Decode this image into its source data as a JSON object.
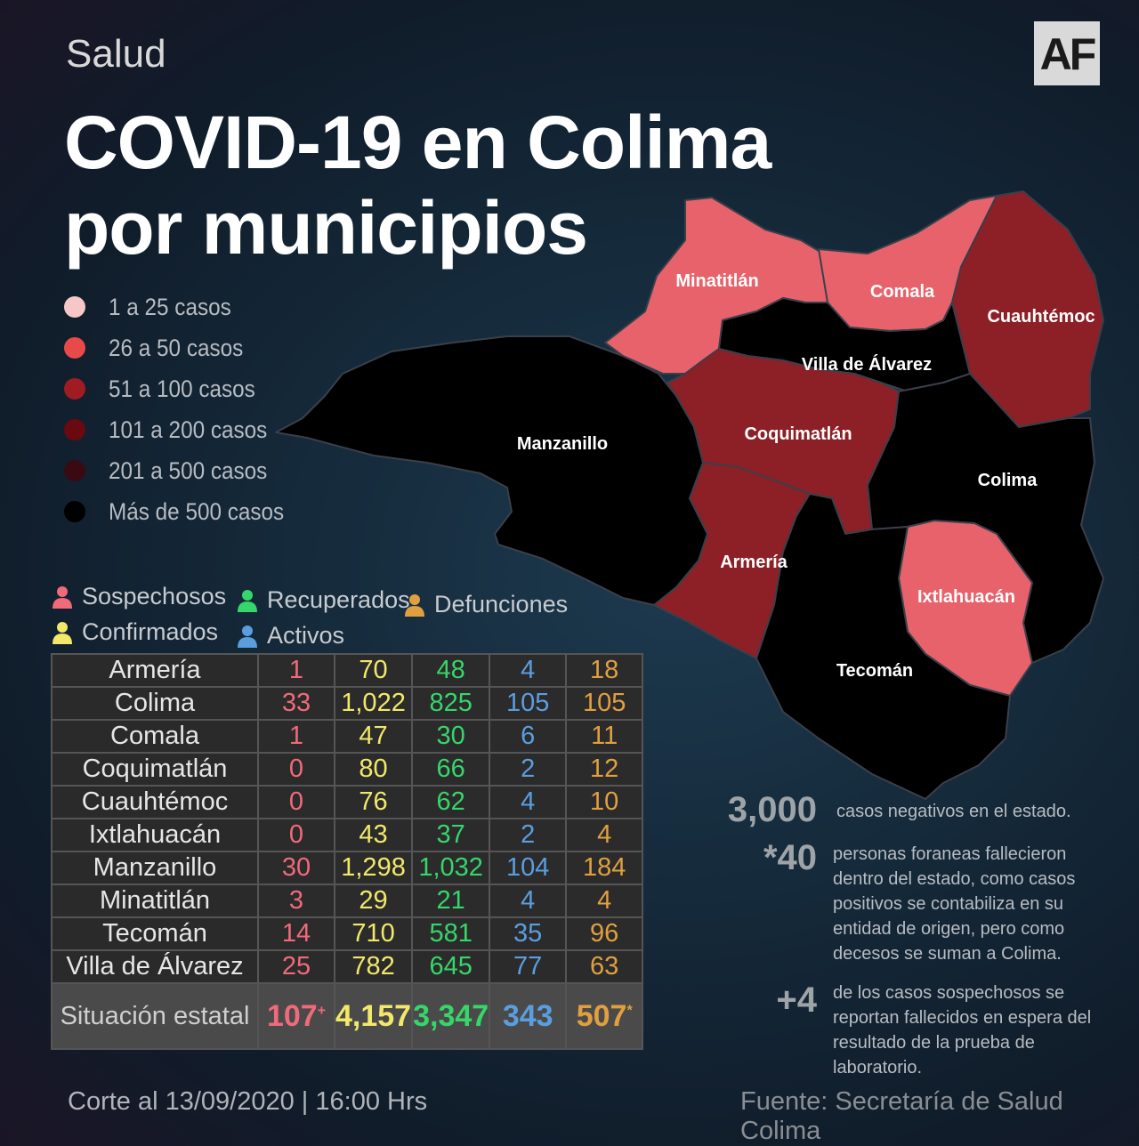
{
  "header": {
    "section": "Salud",
    "title_line1": "COVID-19 en Colima",
    "title_line2": "por municipios",
    "logo": "AF"
  },
  "legend": [
    {
      "label": "1 a 25 casos",
      "color": "#f7c7c7"
    },
    {
      "label": "26 a  50 casos",
      "color": "#e84a4a"
    },
    {
      "label": "51 a  100 casos",
      "color": "#a01c22"
    },
    {
      "label": "101 a  200 casos",
      "color": "#6a0a10"
    },
    {
      "label": "201  a  500 casos",
      "color": "#3a0a12"
    },
    {
      "label": "Más de 500 casos",
      "color": "#000000"
    }
  ],
  "map": {
    "colors": {
      "light": "#e7626a",
      "dark": "#8c2026",
      "black": "#000000",
      "border": "#3a3f4a"
    },
    "labels": {
      "minatitlan": "Minatitlán",
      "comala": "Comala",
      "cuauhtemoc": "Cuauhtémoc",
      "villa": "Villa de Álvarez",
      "manzanillo": "Manzanillo",
      "coquimatlan": "Coquimatlán",
      "colima": "Colima",
      "armeria": "Armería",
      "ixtlahuacan": "Ixtlahuacán",
      "tecoman": "Tecomán"
    }
  },
  "keys": {
    "sospechosos": {
      "label": "Sospechosos",
      "color": "#f06a7a"
    },
    "confirmados": {
      "label": "Confirmados",
      "color": "#f2e86a"
    },
    "recuperados": {
      "label": "Recuperados",
      "color": "#36d66a"
    },
    "activos": {
      "label": "Activos",
      "color": "#5b9ee0"
    },
    "defunciones": {
      "label": "Defunciones",
      "color": "#e0a040"
    }
  },
  "table": {
    "rows": [
      {
        "name": "Armería",
        "sus": "1",
        "con": "70",
        "rec": "48",
        "act": "4",
        "def": "18"
      },
      {
        "name": "Colima",
        "sus": "33",
        "con": "1,022",
        "rec": "825",
        "act": "105",
        "def": "105"
      },
      {
        "name": "Comala",
        "sus": "1",
        "con": "47",
        "rec": "30",
        "act": "6",
        "def": "11"
      },
      {
        "name": "Coquimatlán",
        "sus": "0",
        "con": "80",
        "rec": "66",
        "act": "2",
        "def": "12"
      },
      {
        "name": "Cuauhtémoc",
        "sus": "0",
        "con": "76",
        "rec": "62",
        "act": "4",
        "def": "10"
      },
      {
        "name": "Ixtlahuacán",
        "sus": "0",
        "con": "43",
        "rec": "37",
        "act": "2",
        "def": "4"
      },
      {
        "name": "Manzanillo",
        "sus": "30",
        "con": "1,298",
        "rec": "1,032",
        "act": "104",
        "def": "184"
      },
      {
        "name": "Minatitlán",
        "sus": "3",
        "con": "29",
        "rec": "21",
        "act": "4",
        "def": "4"
      },
      {
        "name": "Tecomán",
        "sus": "14",
        "con": "710",
        "rec": "581",
        "act": "35",
        "def": "96"
      },
      {
        "name": "Villa de Álvarez",
        "sus": "25",
        "con": "782",
        "rec": "645",
        "act": "77",
        "def": "63"
      }
    ],
    "total": {
      "name": "Situación estatal",
      "sus": "107",
      "sus_mark": "+",
      "con": "4,157",
      "rec": "3,347",
      "act": "343",
      "def": "507",
      "def_mark": "*"
    }
  },
  "stats": {
    "negativos_num": "3,000",
    "negativos_text": "casos negativos en el estado.",
    "foraneas_num": "*40",
    "foraneas_text": "personas foraneas fallecieron dentro del estado, como casos positivos se contabiliza en su entidad de origen, pero como decesos se suman a Colima.",
    "sospechosos_num": "+4",
    "sospechosos_text": "de los casos sospechosos se reportan fallecidos en espera del resultado de la prueba de laboratorio."
  },
  "footer": {
    "date": "Corte al 13/09/2020 | 16:00 Hrs",
    "source": "Fuente: Secretaría de Salud Colima"
  }
}
